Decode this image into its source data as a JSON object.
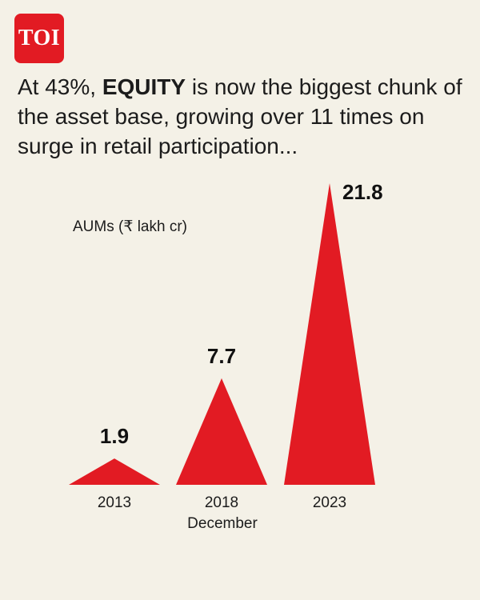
{
  "brand": {
    "logo_text": "TOI",
    "color": "#e21b23"
  },
  "headline": {
    "prefix": "At 43%, ",
    "highlight": "EQUITY",
    "suffix": " is now the biggest chunk of the asset base, growing over 11 times on surge in retail participation..."
  },
  "chart_data": {
    "type": "bar",
    "shape": "triangle",
    "title": "",
    "xlabel": "",
    "ylabel": "AUMs (₹ lakh cr)",
    "categories": [
      "2013",
      "2018",
      "2023"
    ],
    "category_sublabels": [
      "",
      "December",
      ""
    ],
    "values": [
      1.9,
      7.7,
      21.8
    ],
    "data_labels": [
      "1.9",
      "7.7",
      "21.8"
    ],
    "ylim": [
      0,
      21.8
    ],
    "grid": false,
    "bar_color": "#e21b23"
  }
}
